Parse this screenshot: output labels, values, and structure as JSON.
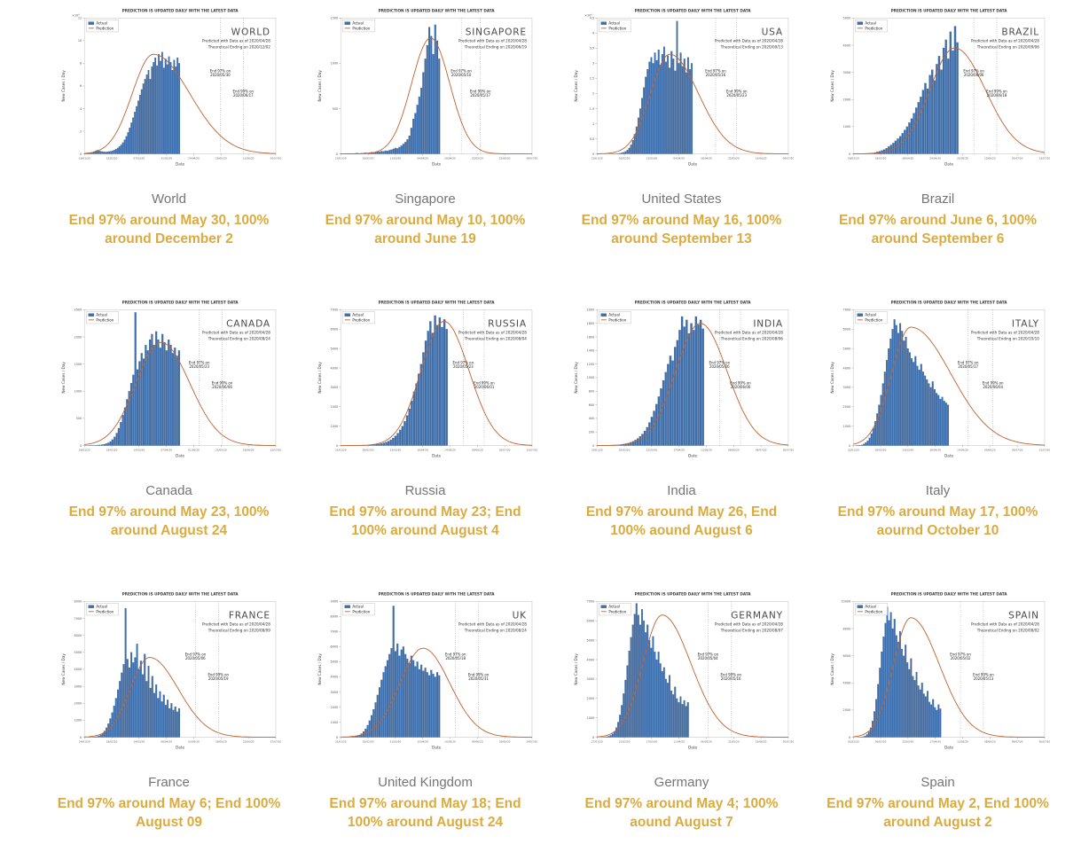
{
  "shared": {
    "banner": "PREDICTION IS UPDATED DAILY WITH THE LATEST DATA",
    "legend": [
      "Actual",
      "Prediction"
    ],
    "predicted_with": "Predicted with Data as of 2020/04/28",
    "ylabel": "New Cases / Day",
    "xlabel": "Date",
    "end97_label": "End 97% on",
    "end99_label": "End 99% on",
    "colors": {
      "actual": "#3e6fad",
      "actual_edge": "#27497c",
      "prediction": "#bf6231",
      "caption": "#dcab3f",
      "country_label": "#757575"
    }
  },
  "chart_data": [
    {
      "type": "bar",
      "title": "WORLD",
      "country_label": "World",
      "caption": "End 97% around May 30, 100% around December 2",
      "theoretical_ending": "Theoretical Ending on 2020/12/02",
      "end97_date": "2020/05/30",
      "end97_frac": 0.71,
      "end99_date": "2020/06/17",
      "end99_frac": 0.83,
      "y_ticks": [
        "0",
        "2",
        "4",
        "6",
        "8",
        "10",
        "12"
      ],
      "y_exp": "×10⁴",
      "ylim": [
        0,
        120000
      ],
      "x_ticks": [
        "19/01/20",
        "12/02/20",
        "07/03/20",
        "31/03/20",
        "24/04/20",
        "18/05/20",
        "11/06/20",
        "05/07/20"
      ],
      "bars_end_frac": 0.5,
      "bars": [
        300,
        400,
        600,
        900,
        1400,
        2000,
        2600,
        3200,
        2800,
        2400,
        2000,
        1800,
        1700,
        1900,
        2100,
        2400,
        2800,
        3400,
        4200,
        5200,
        6500,
        8000,
        10000,
        12500,
        15500,
        19000,
        23000,
        27500,
        32000,
        37000,
        42000,
        47000,
        52000,
        57000,
        62000,
        66000,
        70000,
        74000,
        66000,
        77000,
        81000,
        85000,
        78000,
        88000,
        82000,
        90000,
        76000,
        84000,
        79000,
        86000,
        81000,
        74000,
        83000,
        77000,
        85000,
        80000
      ],
      "prediction": {
        "peak": 88000,
        "mu": 0.36,
        "sl": 0.11,
        "sr": 0.19
      }
    },
    {
      "type": "bar",
      "title": "SINGAPORE",
      "country_label": "Singapore",
      "caption": "End 97% around May 10, 100% around June 19",
      "theoretical_ending": "Theoretical Ending on 2020/06/19",
      "end97_date": "2020/05/10",
      "end97_frac": 0.63,
      "end99_date": "2020/05/17",
      "end99_frac": 0.73,
      "y_ticks": [
        "0",
        "500",
        "1000",
        "1500"
      ],
      "ylim": [
        0,
        1500
      ],
      "x_ticks": [
        "23/01/20",
        "16/02/20",
        "11/03/20",
        "04/04/20",
        "28/04/20",
        "22/05/20",
        "15/06/20",
        "09/07/20"
      ],
      "bars_end_frac": 0.52,
      "bars": [
        3,
        1,
        2,
        4,
        3,
        5,
        4,
        6,
        8,
        5,
        7,
        9,
        12,
        10,
        14,
        18,
        16,
        20,
        25,
        22,
        30,
        28,
        35,
        32,
        40,
        47,
        55,
        65,
        60,
        75,
        90,
        110,
        130,
        160,
        200,
        287,
        386,
        450,
        540,
        630,
        728,
        900,
        1050,
        1200,
        1400,
        1300,
        1100,
        1426,
        1250,
        1050
      ],
      "prediction": {
        "peak": 1280,
        "mu": 0.47,
        "sl": 0.1,
        "sr": 0.1
      }
    },
    {
      "type": "bar",
      "title": "USA",
      "country_label": "United States",
      "caption": "End 97% around May 16, 100% around September 13",
      "theoretical_ending": "Theoretical Ending on 2020/09/13",
      "end97_date": "2020/05/16",
      "end97_frac": 0.62,
      "end99_date": "2020/05/23",
      "end99_frac": 0.73,
      "y_ticks": [
        "0",
        "0.5",
        "1",
        "1.5",
        "2",
        "2.5",
        "3",
        "3.5",
        "4",
        "4.5"
      ],
      "y_exp": "×10⁴",
      "ylim": [
        0,
        45000
      ],
      "x_ticks": [
        "23/01/20",
        "16/02/20",
        "11/03/20",
        "04/04/20",
        "28/04/20",
        "22/05/20",
        "15/06/20",
        "09/07/20"
      ],
      "bars_end_frac": 0.5,
      "bars": [
        1,
        2,
        3,
        5,
        8,
        12,
        18,
        25,
        35,
        50,
        80,
        120,
        200,
        350,
        550,
        850,
        1300,
        2000,
        3000,
        4500,
        6500,
        9000,
        12000,
        15000,
        18500,
        22000,
        25500,
        28000,
        30500,
        32000,
        30000,
        33500,
        31000,
        34500,
        29500,
        33000,
        35500,
        30500,
        32500,
        28500,
        34000,
        31500,
        27500,
        44000,
        30000,
        33500,
        29000,
        31500,
        27000,
        32000,
        28000,
        30000
      ],
      "prediction": {
        "peak": 33000,
        "mu": 0.38,
        "sl": 0.1,
        "sr": 0.15
      }
    },
    {
      "type": "bar",
      "title": "BRAZIL",
      "country_label": "Brazil",
      "caption": "End 97% around June 6, 100% around September 6",
      "theoretical_ending": "Theoretical Ending on 2020/09/06",
      "end97_date": "2020/06/06",
      "end97_frac": 0.63,
      "end99_date": "2020/06/18",
      "end99_frac": 0.75,
      "y_ticks": [
        "0",
        "1000",
        "2000",
        "3000",
        "4000",
        "5000"
      ],
      "ylim": [
        0,
        5000
      ],
      "x_ticks": [
        "26/02/20",
        "18/03/20",
        "08/04/20",
        "29/04/20",
        "20/05/20",
        "10/06/20",
        "01/07/20",
        "22/07/20"
      ],
      "bars_end_frac": 0.55,
      "bars": [
        1,
        2,
        3,
        5,
        8,
        12,
        18,
        25,
        35,
        50,
        70,
        95,
        125,
        160,
        210,
        270,
        330,
        400,
        480,
        560,
        650,
        760,
        880,
        1000,
        1150,
        1300,
        1500,
        1700,
        1900,
        2100,
        2350,
        2600,
        2400,
        2900,
        3100,
        2700,
        3300,
        3600,
        3100,
        3900,
        4200,
        3500,
        4500,
        3800,
        4700,
        4100
      ],
      "prediction": {
        "peak": 3900,
        "mu": 0.53,
        "sl": 0.13,
        "sr": 0.16
      }
    },
    {
      "type": "bar",
      "title": "CANADA",
      "country_label": "Canada",
      "caption": "End 97% around May 23, 100% around August 24",
      "theoretical_ending": "Theoretical Ending on 2020/08/24",
      "end97_date": "2020/05/23",
      "end97_frac": 0.6,
      "end99_date": "2020/06/06",
      "end99_frac": 0.72,
      "y_ticks": [
        "0",
        "500",
        "1000",
        "1500",
        "2000",
        "2500"
      ],
      "ylim": [
        0,
        2500
      ],
      "x_ticks": [
        "26/01/20",
        "19/02/20",
        "14/03/20",
        "07/04/20",
        "01/05/20",
        "25/05/20",
        "18/06/20",
        "12/07/20"
      ],
      "bars_end_frac": 0.5,
      "bars": [
        1,
        1,
        2,
        3,
        4,
        6,
        9,
        13,
        18,
        25,
        35,
        50,
        75,
        110,
        160,
        230,
        320,
        430,
        560,
        700,
        850,
        1000,
        1150,
        1300,
        2450,
        1400,
        1550,
        1700,
        1600,
        1850,
        1750,
        1950,
        2050,
        1850,
        2100,
        1950,
        1800,
        2050,
        1900,
        1750,
        1950,
        1850,
        1700,
        1800,
        1650,
        1750
      ],
      "prediction": {
        "peak": 1900,
        "mu": 0.4,
        "sl": 0.13,
        "sr": 0.15
      }
    },
    {
      "type": "bar",
      "title": "RUSSIA",
      "country_label": "Russia",
      "caption": "End 97% around May 23; End 100% around August 4",
      "theoretical_ending": "Theoretical Ending on 2020/08/04",
      "end97_date": "2020/05/23",
      "end97_frac": 0.64,
      "end99_date": "2020/06/01",
      "end99_frac": 0.75,
      "y_ticks": [
        "0",
        "1000",
        "2000",
        "3000",
        "4000",
        "5000",
        "6000",
        "7000"
      ],
      "ylim": [
        0,
        7000
      ],
      "x_ticks": [
        "31/01/20",
        "26/02/20",
        "23/03/20",
        "18/04/20",
        "14/05/20",
        "09/06/20",
        "05/07/20",
        "31/07/20"
      ],
      "bars_end_frac": 0.56,
      "bars": [
        1,
        1,
        2,
        2,
        3,
        4,
        5,
        7,
        9,
        12,
        16,
        21,
        28,
        37,
        48,
        63,
        82,
        107,
        140,
        180,
        230,
        300,
        390,
        500,
        640,
        810,
        1000,
        1250,
        1550,
        1900,
        2300,
        2770,
        3200,
        3700,
        4200,
        4800,
        5400,
        5900,
        6400,
        5800,
        6700,
        6200,
        6600,
        6100,
        6500,
        6000
      ],
      "prediction": {
        "peak": 6400,
        "mu": 0.54,
        "sl": 0.12,
        "sr": 0.13
      }
    },
    {
      "type": "bar",
      "title": "INDIA",
      "country_label": "India",
      "caption": "End 97% around May 26, End 100% aound August 6",
      "theoretical_ending": "Theoretical Ending on 2020/08/06",
      "end97_date": "2020/05/26",
      "end97_frac": 0.64,
      "end99_date": "2020/06/06",
      "end99_frac": 0.75,
      "y_ticks": [
        "0",
        "200",
        "400",
        "600",
        "800",
        "1000",
        "1200",
        "1400",
        "1600",
        "1800",
        "2000"
      ],
      "ylim": [
        0,
        2000
      ],
      "x_ticks": [
        "30/01/20",
        "25/02/20",
        "22/03/20",
        "17/04/20",
        "13/05/20",
        "08/06/20",
        "04/07/20",
        "30/07/20"
      ],
      "bars_end_frac": 0.56,
      "bars": [
        1,
        1,
        2,
        2,
        3,
        4,
        5,
        7,
        9,
        12,
        16,
        21,
        28,
        37,
        48,
        63,
        82,
        105,
        135,
        170,
        215,
        270,
        340,
        420,
        510,
        610,
        720,
        840,
        960,
        1080,
        1200,
        1320,
        1250,
        1450,
        1550,
        1700,
        1900,
        1750,
        1850,
        1650,
        1800,
        1700,
        1900,
        1780,
        1850,
        1720
      ],
      "prediction": {
        "peak": 1800,
        "mu": 0.54,
        "sl": 0.13,
        "sr": 0.14
      }
    },
    {
      "type": "bar",
      "title": "ITALY",
      "country_label": "Italy",
      "caption": "End 97% around May 17, 100% aournd October 10",
      "theoretical_ending": "Theoretical Ending on 2020/10/10",
      "end97_date": "2020/05/17",
      "end97_frac": 0.6,
      "end99_date": "2020/06/04",
      "end99_frac": 0.73,
      "y_ticks": [
        "0",
        "1000",
        "2000",
        "3000",
        "4000",
        "5000",
        "6000",
        "7000"
      ],
      "ylim": [
        0,
        7000
      ],
      "x_ticks": [
        "31/01/20",
        "26/02/20",
        "23/03/20",
        "18/04/20",
        "14/05/20",
        "09/06/20",
        "05/07/20",
        "31/07/20"
      ],
      "bars_end_frac": 0.5,
      "bars": [
        2,
        5,
        10,
        20,
        40,
        80,
        150,
        250,
        400,
        620,
        900,
        1250,
        1650,
        2100,
        2600,
        3200,
        3800,
        4400,
        5000,
        5500,
        6000,
        6500,
        6200,
        5800,
        6300,
        5900,
        5400,
        5600,
        5000,
        4800,
        4500,
        4300,
        4600,
        4100,
        3900,
        4200,
        3800,
        3600,
        3400,
        3200,
        3000,
        3300,
        2900,
        2700,
        2600,
        2400,
        2500,
        2300,
        2200,
        2100
      ],
      "prediction": {
        "peak": 6100,
        "mu": 0.3,
        "sl": 0.1,
        "sr": 0.21
      }
    },
    {
      "type": "bar",
      "title": "FRANCE",
      "country_label": "France",
      "caption": "End 97% around May 6; End 100% August 09",
      "theoretical_ending": "Theoretical Ending on 2020/08/09",
      "end97_date": "2020/05/06",
      "end97_frac": 0.58,
      "end99_date": "2020/05/19",
      "end99_frac": 0.7,
      "y_ticks": [
        "0",
        "1000",
        "2000",
        "3000",
        "4000",
        "5000",
        "6000",
        "7000",
        "8000"
      ],
      "ylim": [
        0,
        8000
      ],
      "x_ticks": [
        "24/01/20",
        "18/02/20",
        "14/03/20",
        "08/04/20",
        "03/05/20",
        "28/05/20",
        "22/06/20",
        "17/07/20"
      ],
      "bars_end_frac": 0.5,
      "bars": [
        1,
        2,
        4,
        8,
        15,
        25,
        45,
        80,
        140,
        230,
        370,
        560,
        800,
        1100,
        1450,
        1850,
        2300,
        2800,
        3300,
        3800,
        4300,
        7600,
        4600,
        4100,
        5000,
        4400,
        4700,
        5500,
        4000,
        4500,
        3700,
        4900,
        3300,
        4200,
        2900,
        3600,
        2600,
        3100,
        2300,
        2700,
        2100,
        2500,
        1900,
        2200,
        1700,
        2000,
        1600,
        1800,
        1500,
        1700
      ],
      "prediction": {
        "peak": 4700,
        "mu": 0.34,
        "sl": 0.1,
        "sr": 0.15
      }
    },
    {
      "type": "bar",
      "title": "UK",
      "country_label": "United Kingdom",
      "caption": "End 97% around May 18; End 100% around August 24",
      "theoretical_ending": "Theoretical Ending on 2020/08/24",
      "end97_date": "2020/05/18",
      "end97_frac": 0.6,
      "end99_date": "2020/05/31",
      "end99_frac": 0.72,
      "y_ticks": [
        "0",
        "1000",
        "2000",
        "3000",
        "4000",
        "5000",
        "6000",
        "7000",
        "8000",
        "9000"
      ],
      "ylim": [
        0,
        9000
      ],
      "x_ticks": [
        "31/01/20",
        "25/02/20",
        "21/03/20",
        "15/04/20",
        "10/05/20",
        "04/06/20",
        "29/06/20",
        "24/07/20"
      ],
      "bars_end_frac": 0.52,
      "bars": [
        1,
        2,
        3,
        5,
        10,
        18,
        30,
        50,
        90,
        150,
        240,
        380,
        560,
        800,
        1100,
        1450,
        1850,
        2300,
        2800,
        3300,
        3800,
        4300,
        4700,
        5100,
        5500,
        5900,
        8700,
        5700,
        6200,
        5400,
        5800,
        6000,
        5500,
        5200,
        4900,
        5400,
        5100,
        4700,
        5000,
        4500,
        4800,
        4400,
        4600,
        4300,
        4100,
        4450,
        4200,
        4000,
        4300,
        4100
      ],
      "prediction": {
        "peak": 5900,
        "mu": 0.43,
        "sl": 0.12,
        "sr": 0.14
      }
    },
    {
      "type": "bar",
      "title": "GERMANY",
      "country_label": "Germany",
      "caption": "End 97% around May 4; 100% aound August 7",
      "theoretical_ending": "Theoretical Ending on 2020/08/07",
      "end97_date": "2020/05/04",
      "end97_frac": 0.58,
      "end99_date": "2020/05/16",
      "end99_frac": 0.7,
      "y_ticks": [
        "0",
        "1000",
        "2000",
        "3000",
        "4000",
        "5000",
        "6000",
        "7000"
      ],
      "ylim": [
        0,
        7000
      ],
      "x_ticks": [
        "27/01/20",
        "21/02/20",
        "17/03/20",
        "11/04/20",
        "06/05/20",
        "31/05/20",
        "25/06/20",
        "20/07/20"
      ],
      "bars_end_frac": 0.48,
      "bars": [
        1,
        2,
        4,
        8,
        16,
        30,
        60,
        100,
        180,
        300,
        500,
        780,
        1150,
        1650,
        2250,
        2950,
        3700,
        4450,
        5150,
        5800,
        6350,
        6900,
        6300,
        5800,
        6600,
        6000,
        5400,
        5800,
        5000,
        4600,
        5200,
        4400,
        4000,
        4400,
        3800,
        3400,
        3600,
        3000,
        2800,
        3200,
        2400,
        2200,
        2600,
        2000,
        1800,
        2100,
        1700,
        1900,
        1600,
        1800
      ],
      "prediction": {
        "peak": 6300,
        "mu": 0.34,
        "sl": 0.1,
        "sr": 0.15
      }
    },
    {
      "type": "bar",
      "title": "SPAIN",
      "country_label": "Spain",
      "caption": "End 97% around May 2, End 100% around August 2",
      "theoretical_ending": "Theoretical Ending on 2020/08/02",
      "end97_date": "2020/05/02",
      "end97_frac": 0.56,
      "end99_date": "2020/05/13",
      "end99_frac": 0.68,
      "y_ticks": [
        "0",
        "2000",
        "4000",
        "6000",
        "8000",
        "10000"
      ],
      "ylim": [
        0,
        10000
      ],
      "x_ticks": [
        "01/02/20",
        "26/02/20",
        "22/03/20",
        "17/04/20",
        "13/05/20",
        "08/06/20",
        "04/07/20",
        "30/07/20"
      ],
      "bars_end_frac": 0.46,
      "bars": [
        1,
        2,
        5,
        10,
        25,
        50,
        100,
        200,
        400,
        700,
        1200,
        1900,
        2800,
        3900,
        5100,
        6300,
        7400,
        8400,
        9600,
        8600,
        9200,
        8000,
        8700,
        7500,
        7000,
        7800,
        6500,
        6000,
        6800,
        5500,
        5000,
        5800,
        4500,
        4200,
        4800,
        3800,
        3500,
        4000,
        3200,
        3000,
        3400,
        2600,
        2400,
        2800,
        2200,
        2000,
        2400,
        2100
      ],
      "prediction": {
        "peak": 8800,
        "mu": 0.3,
        "sl": 0.09,
        "sr": 0.15
      }
    }
  ]
}
